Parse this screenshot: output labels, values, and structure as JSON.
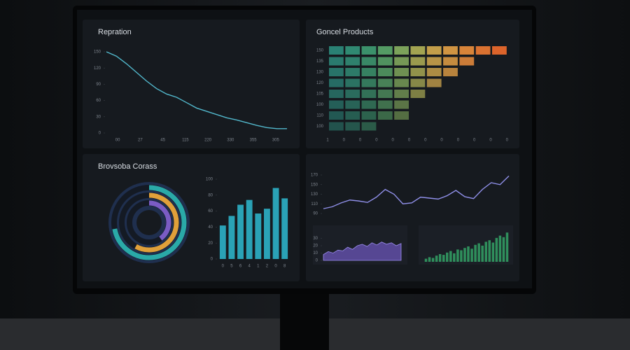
{
  "panels": [
    {
      "title": "Repration",
      "charts": [
        {
          "type": "line",
          "color": "#52b8cc",
          "values": [
            150,
            142,
            128,
            112,
            96,
            82,
            72,
            66,
            56,
            46,
            40,
            34,
            28,
            24,
            19,
            14,
            10,
            8,
            8
          ],
          "ylim": [
            0,
            150
          ],
          "yticks": [
            0,
            30,
            60,
            90,
            120,
            150
          ],
          "categories": [
            "00",
            "27",
            "45",
            "115",
            "220",
            "330",
            "355",
            "305"
          ]
        }
      ]
    },
    {
      "title": "Goncel Products",
      "charts": [
        {
          "type": "cells",
          "categories": [
            "150",
            "135",
            "130",
            "120",
            "105",
            "100",
            "110",
            "100"
          ],
          "values": [
            11,
            9,
            8,
            7,
            6,
            5,
            5,
            3
          ],
          "xlabels": [
            "1",
            "0",
            "0",
            "0",
            "0",
            "0",
            "0",
            "0",
            "0",
            "0",
            "0",
            "0"
          ],
          "colors": [
            "#2d8a7c",
            "#33927a",
            "#3f9b72",
            "#5aa66a",
            "#86ae5f",
            "#b0b056",
            "#d2a94e",
            "#e19e45",
            "#e98d3c",
            "#ec7a33",
            "#ee6a2c"
          ]
        }
      ]
    },
    {
      "title": "Brovsoba Corass",
      "charts": [
        {
          "type": "rings",
          "values": [
            72,
            58,
            40
          ],
          "colors": [
            "#2aa9a8",
            "#e0a03a",
            "#7a5cc4"
          ]
        },
        {
          "type": "bar",
          "color": "#2aa2b6",
          "values": [
            42,
            54,
            68,
            74,
            57,
            63,
            89,
            76
          ],
          "ylim": [
            0,
            100
          ],
          "yticks": [
            0,
            20,
            40,
            60,
            80,
            100
          ],
          "categories": [
            "0",
            "5",
            "6",
            "4",
            "1",
            "2",
            "0",
            "8"
          ]
        }
      ]
    },
    {
      "charts": [
        {
          "type": "line",
          "color": "#8f8fe8",
          "values": [
            100,
            104,
            112,
            118,
            116,
            113,
            124,
            140,
            130,
            110,
            112,
            124,
            122,
            120,
            127,
            138,
            125,
            121,
            140,
            154,
            150,
            168
          ],
          "ylim": [
            90,
            170
          ],
          "yticks": [
            90,
            110,
            130,
            150,
            170
          ]
        },
        {
          "type": "area",
          "color": "#6b55b8",
          "values": [
            8,
            12,
            10,
            14,
            13,
            18,
            15,
            20,
            22,
            19,
            24,
            21,
            25,
            22,
            24,
            20,
            23
          ],
          "ylim": [
            0,
            40
          ],
          "yticks": [
            0,
            10,
            20,
            30
          ]
        },
        {
          "type": "bar",
          "color": "#2f8f5c",
          "values": [
            4,
            6,
            5,
            8,
            10,
            9,
            12,
            14,
            11,
            16,
            15,
            18,
            20,
            17,
            22,
            24,
            21,
            26,
            28,
            25,
            31,
            34,
            32,
            38
          ],
          "ylim": [
            0,
            40
          ]
        }
      ]
    }
  ]
}
